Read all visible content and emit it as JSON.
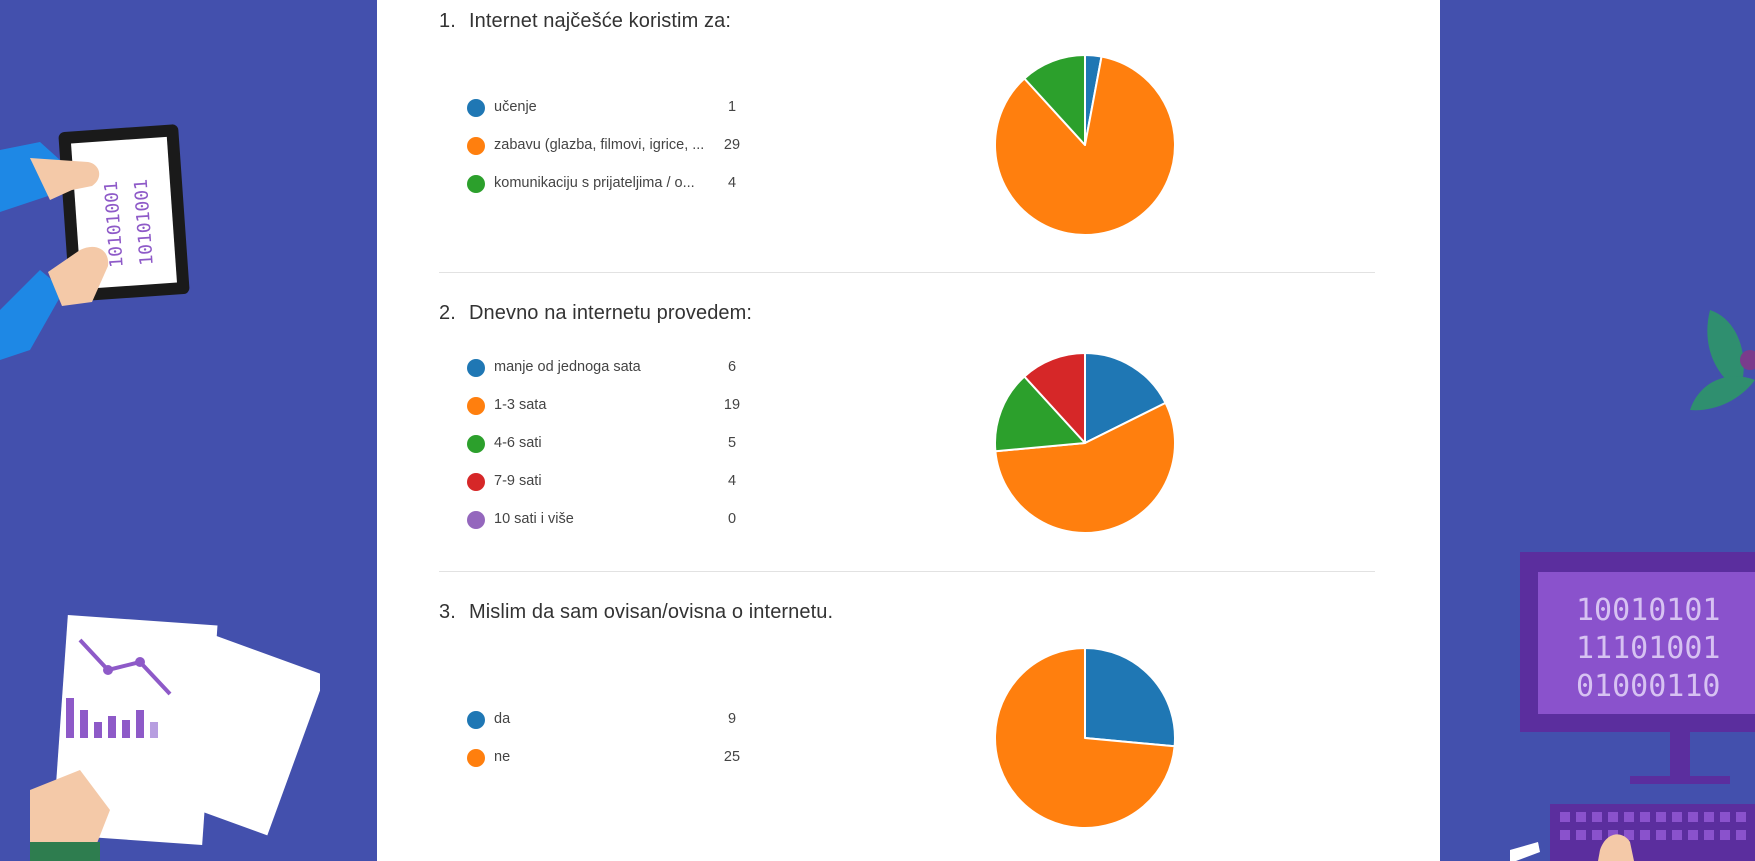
{
  "colors": {
    "background": "#4350ad",
    "panel": "#ffffff",
    "divider": "#e2e2e2"
  },
  "questions": [
    {
      "number": "1.",
      "title": "Internet najčešće koristim za:",
      "items": [
        {
          "label": "učenje",
          "count": "1",
          "color": "#1f77b4"
        },
        {
          "label": "zabavu (glazba, filmovi, igrice, ...",
          "count": "29",
          "color": "#ff7f0e"
        },
        {
          "label": "komunikaciju s prijateljima / o...",
          "count": "4",
          "color": "#2ca02c"
        }
      ]
    },
    {
      "number": "2.",
      "title": "Dnevno na internetu provedem:",
      "items": [
        {
          "label": "manje od jednoga sata",
          "count": "6",
          "color": "#1f77b4"
        },
        {
          "label": "1-3 sata",
          "count": "19",
          "color": "#ff7f0e"
        },
        {
          "label": "4-6 sati",
          "count": "5",
          "color": "#2ca02c"
        },
        {
          "label": "7-9 sati",
          "count": "4",
          "color": "#d62728"
        },
        {
          "label": "10 sati i više",
          "count": "0",
          "color": "#9467bd"
        }
      ]
    },
    {
      "number": "3.",
      "title": "Mislim da sam ovisan/ovisna o internetu.",
      "items": [
        {
          "label": "da",
          "count": "9",
          "color": "#1f77b4"
        },
        {
          "label": "ne",
          "count": "25",
          "color": "#ff7f0e"
        }
      ]
    }
  ],
  "chart_data": [
    {
      "type": "pie",
      "title": "Internet najčešće koristim za:",
      "categories": [
        "učenje",
        "zabavu (glazba, filmovi, igrice, ...",
        "komunikaciju s prijateljima / o..."
      ],
      "values": [
        1,
        29,
        4
      ],
      "colors": [
        "#1f77b4",
        "#ff7f0e",
        "#2ca02c"
      ],
      "legend": "left"
    },
    {
      "type": "pie",
      "title": "Dnevno na internetu provedem:",
      "categories": [
        "manje od jednoga sata",
        "1-3 sata",
        "4-6 sati",
        "7-9 sati",
        "10 sati i više"
      ],
      "values": [
        6,
        19,
        5,
        4,
        0
      ],
      "colors": [
        "#1f77b4",
        "#ff7f0e",
        "#2ca02c",
        "#d62728",
        "#9467bd"
      ],
      "legend": "left"
    },
    {
      "type": "pie",
      "title": "Mislim da sam ovisan/ovisna o internetu.",
      "categories": [
        "da",
        "ne"
      ],
      "values": [
        9,
        25
      ],
      "colors": [
        "#1f77b4",
        "#ff7f0e"
      ],
      "legend": "left"
    }
  ],
  "decor": {
    "monitor_text": [
      "10010101",
      "11101001",
      "01000110"
    ],
    "tablet_text": [
      "10101001",
      "10101001"
    ]
  }
}
